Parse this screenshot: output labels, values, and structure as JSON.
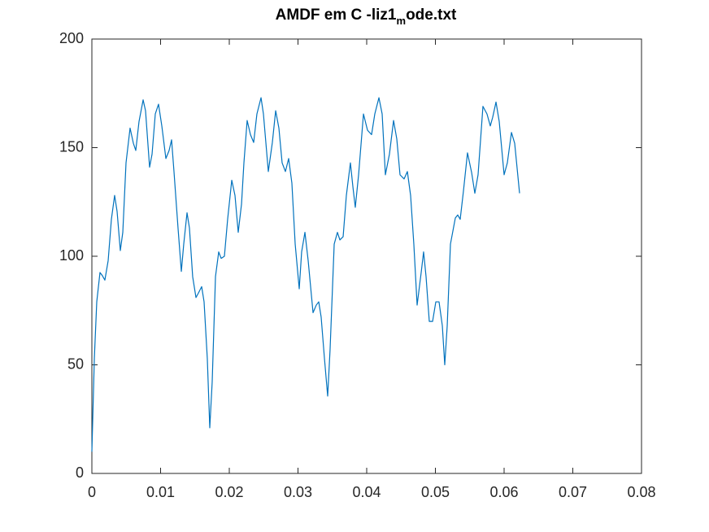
{
  "chart_data": {
    "type": "line",
    "title": {
      "text": "AMDF em C -liz1",
      "subscript": "m",
      "rest": "ode.txt"
    },
    "xlim": [
      0,
      0.08
    ],
    "xticks": [
      0,
      0.01,
      0.02,
      0.03,
      0.04,
      0.05,
      0.06,
      0.07,
      0.08
    ],
    "ylim": [
      0,
      200
    ],
    "yticks": [
      0,
      50,
      100,
      150,
      200
    ],
    "grid": false,
    "series": [
      {
        "color": "#0072bd",
        "x": [
          0,
          0.00036,
          0.00071,
          0.00118,
          0.00154,
          0.00189,
          0.00237,
          0.00284,
          0.00331,
          0.00367,
          0.00414,
          0.0045,
          0.00497,
          0.00556,
          0.00604,
          0.00639,
          0.00686,
          0.00746,
          0.00781,
          0.0084,
          0.00876,
          0.00923,
          0.0097,
          0.01018,
          0.01077,
          0.01124,
          0.0116,
          0.01195,
          0.01254,
          0.01302,
          0.01337,
          0.01385,
          0.0142,
          0.01467,
          0.01515,
          0.0155,
          0.01598,
          0.01633,
          0.0168,
          0.01716,
          0.01751,
          0.01799,
          0.01846,
          0.01882,
          0.01929,
          0.01976,
          0.02036,
          0.02083,
          0.0213,
          0.02178,
          0.02213,
          0.0226,
          0.02308,
          0.02355,
          0.02402,
          0.02462,
          0.02497,
          0.02568,
          0.02627,
          0.02675,
          0.02722,
          0.02769,
          0.02817,
          0.02864,
          0.02911,
          0.02959,
          0.03018,
          0.03053,
          0.03101,
          0.03148,
          0.03219,
          0.03266,
          0.03302,
          0.03337,
          0.03385,
          0.03432,
          0.03467,
          0.03527,
          0.03574,
          0.0361,
          0.03657,
          0.03704,
          0.03763,
          0.03799,
          0.03834,
          0.03882,
          0.03953,
          0.04012,
          0.04071,
          0.04118,
          0.04178,
          0.04225,
          0.04272,
          0.04331,
          0.04391,
          0.04438,
          0.04485,
          0.04544,
          0.04592,
          0.04639,
          0.04686,
          0.04734,
          0.04793,
          0.04828,
          0.04864,
          0.04911,
          0.04959,
          0.05006,
          0.05053,
          0.05101,
          0.05136,
          0.05172,
          0.05219,
          0.0529,
          0.05325,
          0.05361,
          0.05408,
          0.05467,
          0.05527,
          0.05574,
          0.05621,
          0.05692,
          0.05751,
          0.05799,
          0.05834,
          0.05882,
          0.05929,
          0.06,
          0.06047,
          0.06107,
          0.06154,
          0.06225
        ],
        "values": [
          10,
          53,
          79,
          92.5,
          91,
          89,
          98,
          117,
          128,
          120.6,
          102.6,
          111,
          143,
          159,
          152,
          148.7,
          162,
          172,
          167,
          141,
          147,
          165.5,
          170,
          160,
          145,
          148.7,
          153.6,
          139,
          113,
          93,
          105.6,
          120,
          113,
          90.6,
          81,
          83,
          86,
          79,
          53,
          21,
          42,
          90.6,
          102,
          99,
          100,
          117,
          135,
          128,
          111,
          124,
          143,
          162.5,
          156,
          152.4,
          165.5,
          173,
          165.5,
          139,
          152.4,
          167,
          159,
          143,
          139,
          145,
          133.7,
          105.6,
          85,
          102,
          111,
          98,
          74,
          77.5,
          79,
          72,
          53,
          35.6,
          57,
          105.6,
          111,
          107.5,
          109,
          128,
          143,
          132,
          122.5,
          137.5,
          165.5,
          158,
          156,
          165.5,
          173,
          165.5,
          137.5,
          147,
          162.5,
          154,
          137.5,
          135.6,
          139,
          128,
          105.6,
          77.5,
          92.5,
          102,
          90.6,
          70,
          70,
          79,
          79,
          68,
          50,
          68,
          105.6,
          117.6,
          119,
          117,
          130,
          147.6,
          138.6,
          129,
          137.5,
          169,
          165.5,
          160,
          164,
          171,
          162,
          137.5,
          143,
          157,
          152,
          129
        ]
      }
    ]
  }
}
